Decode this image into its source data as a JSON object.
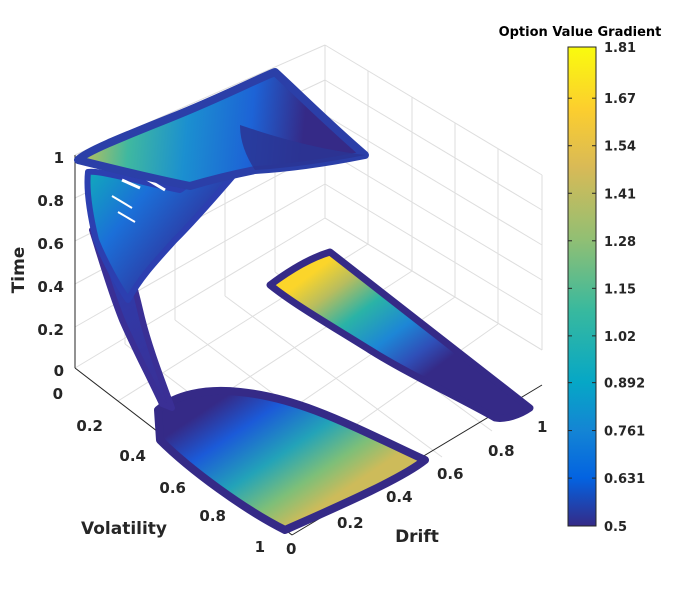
{
  "chart_data": {
    "type": "scatter3d",
    "x_axis": {
      "label": "Drift",
      "ticks": [
        "0",
        "0.2",
        "0.4",
        "0.6",
        "0.8",
        "1"
      ],
      "range": [
        0,
        1
      ]
    },
    "y_axis": {
      "label": "Volatility",
      "ticks": [
        "0",
        "0.2",
        "0.4",
        "0.6",
        "0.8",
        "1"
      ],
      "range": [
        0,
        1
      ]
    },
    "z_axis": {
      "label": "Time",
      "ticks": [
        "0",
        "0.2",
        "0.4",
        "0.6",
        "0.8",
        "1"
      ],
      "range": [
        0,
        1
      ]
    },
    "colorbar": {
      "title": "Option Value Gradient",
      "ticks": [
        "1.81",
        "1.67",
        "1.54",
        "1.41",
        "1.28",
        "1.15",
        "1.02",
        "0.892",
        "0.761",
        "0.631",
        "0.5"
      ],
      "range": [
        0.5,
        1.81
      ],
      "colormap": "parula"
    },
    "grid": true,
    "surfaces": [
      {
        "part": "time-0 plane",
        "z": 0,
        "drift_range": [
          0,
          1
        ],
        "volatility_range": [
          0.4,
          1
        ],
        "value_range": [
          0.6,
          1.6
        ]
      },
      {
        "part": "volatility-0 plane",
        "y": 0,
        "drift_range": [
          0.5,
          1
        ],
        "time_range": [
          0.1,
          0.85
        ],
        "value_range": [
          0.5,
          1.81
        ]
      },
      {
        "part": "drift-0 plane",
        "x": 0,
        "volatility_range": [
          0,
          1
        ],
        "time_range": [
          0,
          1
        ],
        "value_range": [
          0.5,
          1.5
        ]
      }
    ]
  }
}
